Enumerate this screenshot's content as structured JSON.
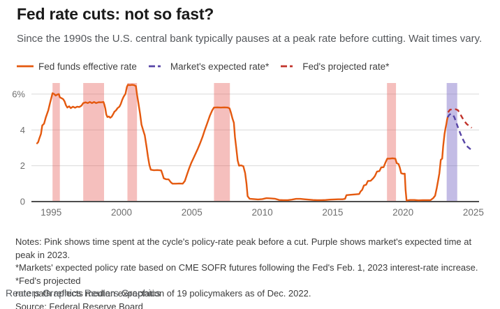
{
  "chart_data": {
    "type": "line",
    "title": "Fed rate cuts: not so fast?",
    "subtitle": "Since the 1990s the U.S. central bank typically pauses at a peak rate before cutting. Wait times vary.",
    "xlabel": "",
    "ylabel": "%",
    "grid": true,
    "legend_position": "top",
    "x_domain": [
      1993.6,
      2025.4
    ],
    "y_domain": [
      0,
      6.62
    ],
    "x_ticks": [
      {
        "value": 1995,
        "label": "1995"
      },
      {
        "value": 2000,
        "label": "2000"
      },
      {
        "value": 2005,
        "label": "2005"
      },
      {
        "value": 2010,
        "label": "2010"
      },
      {
        "value": 2015,
        "label": "2015"
      },
      {
        "value": 2020,
        "label": "2020"
      },
      {
        "value": 2025,
        "label": "2025"
      }
    ],
    "y_ticks": [
      {
        "value": 6,
        "label": "6%"
      },
      {
        "value": 4,
        "label": "4"
      },
      {
        "value": 2,
        "label": "2"
      },
      {
        "value": 0,
        "label": "0"
      }
    ],
    "band_colors": {
      "pink": "rgba(231,96,91,0.40)",
      "purple": "rgba(124,110,199,0.46)"
    },
    "bands": [
      {
        "kind": "pink",
        "from": 1995.1,
        "to": 1995.62
      },
      {
        "kind": "pink",
        "from": 1997.28,
        "to": 1998.76
      },
      {
        "kind": "pink",
        "from": 2000.42,
        "to": 2001.1
      },
      {
        "kind": "pink",
        "from": 2006.57,
        "to": 2007.7
      },
      {
        "kind": "pink",
        "from": 2018.86,
        "to": 2019.5
      },
      {
        "kind": "purple",
        "from": 2023.1,
        "to": 2023.85
      }
    ],
    "axis_colors": {
      "gridline": "#d9d9d9",
      "baseline": "#4e4e4e",
      "tick_label": "#6e6e6e"
    },
    "series": [
      {
        "name": "Fed funds effective rate",
        "color": "#e4590f",
        "dash": null,
        "points": [
          [
            1994.0,
            3.25
          ],
          [
            1994.08,
            3.32
          ],
          [
            1994.15,
            3.5
          ],
          [
            1994.28,
            3.78
          ],
          [
            1994.37,
            4.25
          ],
          [
            1994.5,
            4.35
          ],
          [
            1994.62,
            4.7
          ],
          [
            1994.8,
            5.1
          ],
          [
            1994.92,
            5.5
          ],
          [
            1995.02,
            5.8
          ],
          [
            1995.1,
            6.05
          ],
          [
            1995.22,
            6.0
          ],
          [
            1995.32,
            5.92
          ],
          [
            1995.45,
            5.98
          ],
          [
            1995.55,
            6.0
          ],
          [
            1995.62,
            5.82
          ],
          [
            1995.72,
            5.78
          ],
          [
            1995.85,
            5.72
          ],
          [
            1995.95,
            5.6
          ],
          [
            1996.05,
            5.38
          ],
          [
            1996.15,
            5.25
          ],
          [
            1996.28,
            5.32
          ],
          [
            1996.4,
            5.22
          ],
          [
            1996.55,
            5.3
          ],
          [
            1996.7,
            5.24
          ],
          [
            1996.85,
            5.3
          ],
          [
            1997.0,
            5.28
          ],
          [
            1997.15,
            5.35
          ],
          [
            1997.28,
            5.5
          ],
          [
            1997.45,
            5.54
          ],
          [
            1997.6,
            5.5
          ],
          [
            1997.75,
            5.56
          ],
          [
            1997.9,
            5.5
          ],
          [
            1998.05,
            5.56
          ],
          [
            1998.2,
            5.5
          ],
          [
            1998.38,
            5.55
          ],
          [
            1998.55,
            5.54
          ],
          [
            1998.72,
            5.56
          ],
          [
            1998.78,
            5.42
          ],
          [
            1998.85,
            5.2
          ],
          [
            1998.92,
            4.86
          ],
          [
            1999.0,
            4.72
          ],
          [
            1999.1,
            4.75
          ],
          [
            1999.2,
            4.68
          ],
          [
            1999.3,
            4.74
          ],
          [
            1999.42,
            4.9
          ],
          [
            1999.5,
            5.02
          ],
          [
            1999.6,
            5.08
          ],
          [
            1999.72,
            5.22
          ],
          [
            1999.85,
            5.3
          ],
          [
            1999.95,
            5.45
          ],
          [
            2000.05,
            5.68
          ],
          [
            2000.15,
            5.85
          ],
          [
            2000.28,
            6.02
          ],
          [
            2000.38,
            6.4
          ],
          [
            2000.45,
            6.52
          ],
          [
            2000.6,
            6.5
          ],
          [
            2000.75,
            6.52
          ],
          [
            2000.9,
            6.5
          ],
          [
            2001.02,
            6.45
          ],
          [
            2001.1,
            5.98
          ],
          [
            2001.2,
            5.5
          ],
          [
            2001.32,
            4.9
          ],
          [
            2001.42,
            4.3
          ],
          [
            2001.55,
            3.95
          ],
          [
            2001.65,
            3.7
          ],
          [
            2001.78,
            3.05
          ],
          [
            2001.88,
            2.5
          ],
          [
            2001.98,
            2.05
          ],
          [
            2002.08,
            1.78
          ],
          [
            2002.3,
            1.75
          ],
          [
            2002.55,
            1.76
          ],
          [
            2002.82,
            1.74
          ],
          [
            2002.9,
            1.55
          ],
          [
            2003.0,
            1.3
          ],
          [
            2003.15,
            1.25
          ],
          [
            2003.35,
            1.24
          ],
          [
            2003.5,
            1.08
          ],
          [
            2003.62,
            1.0
          ],
          [
            2003.85,
            1.0
          ],
          [
            2004.1,
            1.01
          ],
          [
            2004.35,
            1.0
          ],
          [
            2004.5,
            1.15
          ],
          [
            2004.65,
            1.5
          ],
          [
            2004.8,
            1.85
          ],
          [
            2004.95,
            2.15
          ],
          [
            2005.1,
            2.4
          ],
          [
            2005.25,
            2.65
          ],
          [
            2005.42,
            2.95
          ],
          [
            2005.58,
            3.25
          ],
          [
            2005.75,
            3.6
          ],
          [
            2005.92,
            4.0
          ],
          [
            2006.1,
            4.4
          ],
          [
            2006.28,
            4.8
          ],
          [
            2006.45,
            5.1
          ],
          [
            2006.57,
            5.25
          ],
          [
            2006.8,
            5.26
          ],
          [
            2007.05,
            5.25
          ],
          [
            2007.3,
            5.26
          ],
          [
            2007.55,
            5.25
          ],
          [
            2007.68,
            5.2
          ],
          [
            2007.78,
            4.95
          ],
          [
            2007.88,
            4.65
          ],
          [
            2007.98,
            4.4
          ],
          [
            2008.06,
            3.6
          ],
          [
            2008.15,
            3.0
          ],
          [
            2008.25,
            2.3
          ],
          [
            2008.35,
            2.0
          ],
          [
            2008.5,
            2.02
          ],
          [
            2008.65,
            1.98
          ],
          [
            2008.78,
            1.6
          ],
          [
            2008.88,
            1.0
          ],
          [
            2008.96,
            0.3
          ],
          [
            2009.1,
            0.16
          ],
          [
            2009.4,
            0.14
          ],
          [
            2009.7,
            0.12
          ],
          [
            2010.0,
            0.14
          ],
          [
            2010.3,
            0.19
          ],
          [
            2010.6,
            0.18
          ],
          [
            2010.9,
            0.16
          ],
          [
            2011.2,
            0.09
          ],
          [
            2011.5,
            0.08
          ],
          [
            2011.8,
            0.08
          ],
          [
            2012.1,
            0.11
          ],
          [
            2012.4,
            0.15
          ],
          [
            2012.7,
            0.15
          ],
          [
            2013.0,
            0.13
          ],
          [
            2013.3,
            0.11
          ],
          [
            2013.6,
            0.09
          ],
          [
            2013.9,
            0.08
          ],
          [
            2014.2,
            0.08
          ],
          [
            2014.5,
            0.09
          ],
          [
            2014.8,
            0.11
          ],
          [
            2015.1,
            0.12
          ],
          [
            2015.4,
            0.13
          ],
          [
            2015.7,
            0.13
          ],
          [
            2015.88,
            0.15
          ],
          [
            2015.98,
            0.36
          ],
          [
            2016.3,
            0.38
          ],
          [
            2016.6,
            0.4
          ],
          [
            2016.88,
            0.42
          ],
          [
            2016.98,
            0.56
          ],
          [
            2017.1,
            0.66
          ],
          [
            2017.22,
            0.9
          ],
          [
            2017.38,
            0.94
          ],
          [
            2017.5,
            1.15
          ],
          [
            2017.7,
            1.16
          ],
          [
            2017.88,
            1.3
          ],
          [
            2018.0,
            1.42
          ],
          [
            2018.15,
            1.68
          ],
          [
            2018.32,
            1.7
          ],
          [
            2018.45,
            1.91
          ],
          [
            2018.62,
            1.92
          ],
          [
            2018.75,
            2.18
          ],
          [
            2018.88,
            2.4
          ],
          [
            2019.05,
            2.4
          ],
          [
            2019.25,
            2.42
          ],
          [
            2019.45,
            2.4
          ],
          [
            2019.55,
            2.14
          ],
          [
            2019.68,
            2.1
          ],
          [
            2019.77,
            1.9
          ],
          [
            2019.87,
            1.58
          ],
          [
            2020.0,
            1.55
          ],
          [
            2020.12,
            1.56
          ],
          [
            2020.18,
            0.65
          ],
          [
            2020.25,
            0.06
          ],
          [
            2020.5,
            0.09
          ],
          [
            2020.8,
            0.09
          ],
          [
            2021.1,
            0.07
          ],
          [
            2021.4,
            0.08
          ],
          [
            2021.7,
            0.08
          ],
          [
            2021.95,
            0.08
          ],
          [
            2022.15,
            0.2
          ],
          [
            2022.28,
            0.33
          ],
          [
            2022.4,
            0.77
          ],
          [
            2022.5,
            1.2
          ],
          [
            2022.58,
            1.58
          ],
          [
            2022.68,
            2.33
          ],
          [
            2022.78,
            2.4
          ],
          [
            2022.85,
            3.08
          ],
          [
            2022.95,
            3.78
          ],
          [
            2023.02,
            4.1
          ],
          [
            2023.08,
            4.33
          ],
          [
            2023.13,
            4.57
          ],
          [
            2023.17,
            4.7
          ]
        ]
      },
      {
        "name": "Market's expected rate*",
        "color": "#5745a6",
        "dash": "7 5",
        "points": [
          [
            2023.17,
            4.7
          ],
          [
            2023.28,
            4.85
          ],
          [
            2023.4,
            4.9
          ],
          [
            2023.52,
            4.88
          ],
          [
            2023.65,
            4.7
          ],
          [
            2023.78,
            4.42
          ],
          [
            2023.92,
            4.1
          ],
          [
            2024.08,
            3.78
          ],
          [
            2024.25,
            3.48
          ],
          [
            2024.42,
            3.22
          ],
          [
            2024.6,
            3.05
          ],
          [
            2024.75,
            2.95
          ],
          [
            2024.88,
            2.88
          ]
        ]
      },
      {
        "name": "Fed's projected rate*",
        "color": "#c1332b",
        "dash": "7 5",
        "points": [
          [
            2023.2,
            4.98
          ],
          [
            2023.32,
            5.12
          ],
          [
            2023.45,
            5.15
          ],
          [
            2023.6,
            5.16
          ],
          [
            2023.75,
            5.15
          ],
          [
            2023.9,
            5.1
          ],
          [
            2024.02,
            4.95
          ],
          [
            2024.18,
            4.72
          ],
          [
            2024.35,
            4.5
          ],
          [
            2024.52,
            4.33
          ],
          [
            2024.7,
            4.22
          ],
          [
            2024.88,
            4.12
          ]
        ]
      }
    ]
  },
  "notes": {
    "lines": [
      "Notes: Pink shows time spent at the cycle's policy-rate peak before a cut. Purple shows market's expected time at peak in 2023.",
      "*Markets' expected policy rate based on CME SOFR futures following the Fed's Feb. 1, 2023 interest-rate increase. *Fed's projected",
      "rate path reflects median expectation of 19 policymakers as of Dec. 2022."
    ],
    "source": "Source: Federal Reserve Board"
  },
  "credit": "Reuters Graphics Reuters Graphics"
}
